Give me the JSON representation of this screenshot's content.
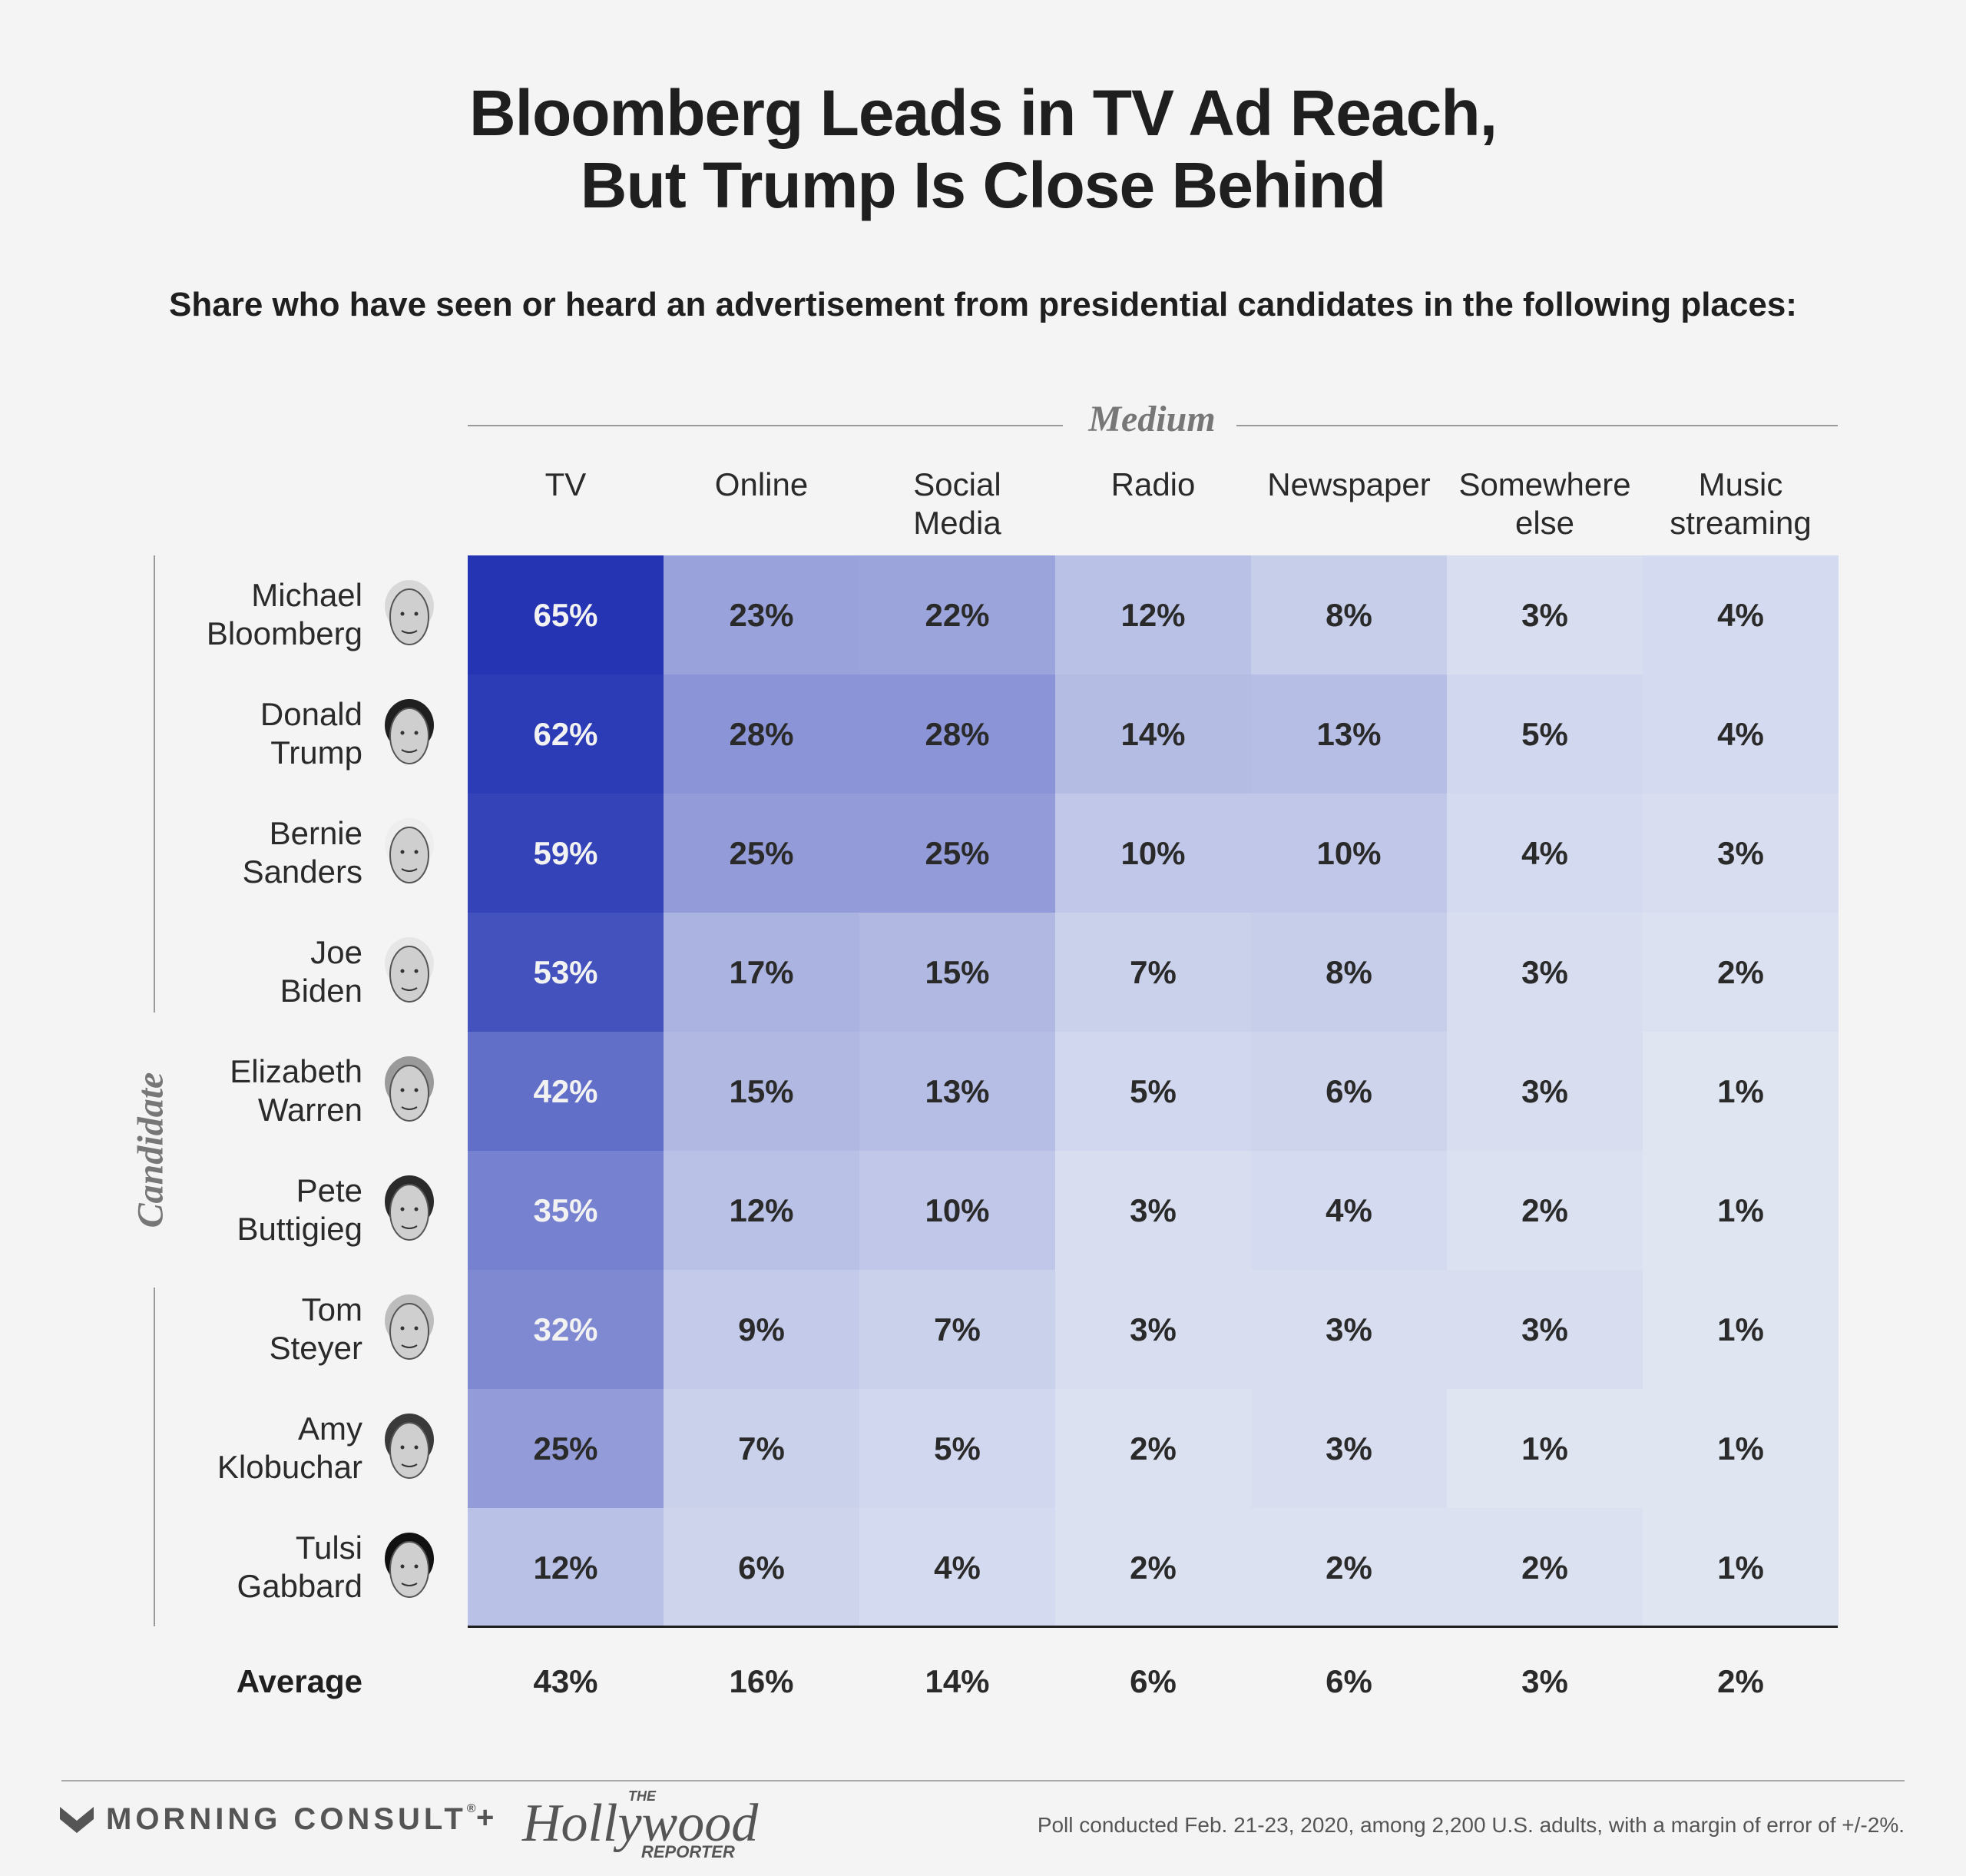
{
  "title_lines": [
    "Bloomberg Leads in TV Ad Reach,",
    "But Trump Is Close Behind"
  ],
  "subtitle": "Share who have seen or heard an advertisement from presidential candidates in the following places:",
  "column_axis_label": "Medium",
  "row_axis_label": "Candidate",
  "footer": {
    "brand_1": "MORNING CONSULT",
    "brand_1_mark": "®",
    "plus": "+",
    "brand_2_the": "THE",
    "brand_2_main": "Hollywood",
    "brand_2_sub": "REPORTER",
    "note": "Poll conducted Feb. 21-23, 2020, among  2,200 U.S. adults, with a margin of error of +/-2%."
  },
  "colors": {
    "background": "#f4f4f4",
    "scale_low": "#e4e9f4",
    "scale_high": "#2434b3"
  },
  "chart_data": {
    "type": "heatmap",
    "columns": [
      [
        "TV"
      ],
      [
        "Online"
      ],
      [
        "Social",
        "Media"
      ],
      [
        "Radio"
      ],
      [
        "Newspaper"
      ],
      [
        "Somewhere",
        "else"
      ],
      [
        "Music",
        "streaming"
      ]
    ],
    "rows": [
      {
        "name": [
          "Michael",
          "Bloomberg"
        ],
        "icon": "bloomberg-face-icon",
        "values": [
          65,
          23,
          22,
          12,
          8,
          3,
          4
        ]
      },
      {
        "name": [
          "Donald",
          "Trump"
        ],
        "icon": "trump-face-icon",
        "values": [
          62,
          28,
          28,
          14,
          13,
          5,
          4
        ]
      },
      {
        "name": [
          "Bernie",
          "Sanders"
        ],
        "icon": "sanders-face-icon",
        "values": [
          59,
          25,
          25,
          10,
          10,
          4,
          3
        ]
      },
      {
        "name": [
          "Joe",
          "Biden"
        ],
        "icon": "biden-face-icon",
        "values": [
          53,
          17,
          15,
          7,
          8,
          3,
          2
        ]
      },
      {
        "name": [
          "Elizabeth",
          "Warren"
        ],
        "icon": "warren-face-icon",
        "values": [
          42,
          15,
          13,
          5,
          6,
          3,
          1
        ]
      },
      {
        "name": [
          "Pete",
          "Buttigieg"
        ],
        "icon": "buttigieg-face-icon",
        "values": [
          35,
          12,
          10,
          3,
          4,
          2,
          1
        ]
      },
      {
        "name": [
          "Tom",
          "Steyer"
        ],
        "icon": "steyer-face-icon",
        "values": [
          32,
          9,
          7,
          3,
          3,
          3,
          1
        ]
      },
      {
        "name": [
          "Amy",
          "Klobuchar"
        ],
        "icon": "klobuchar-face-icon",
        "values": [
          25,
          7,
          5,
          2,
          3,
          1,
          1
        ]
      },
      {
        "name": [
          "Tulsi",
          "Gabbard"
        ],
        "icon": "gabbard-face-icon",
        "values": [
          12,
          6,
          4,
          2,
          2,
          2,
          1
        ]
      }
    ],
    "average": {
      "label": "Average",
      "values": [
        43,
        16,
        14,
        6,
        6,
        3,
        2
      ]
    },
    "value_suffix": "%"
  }
}
